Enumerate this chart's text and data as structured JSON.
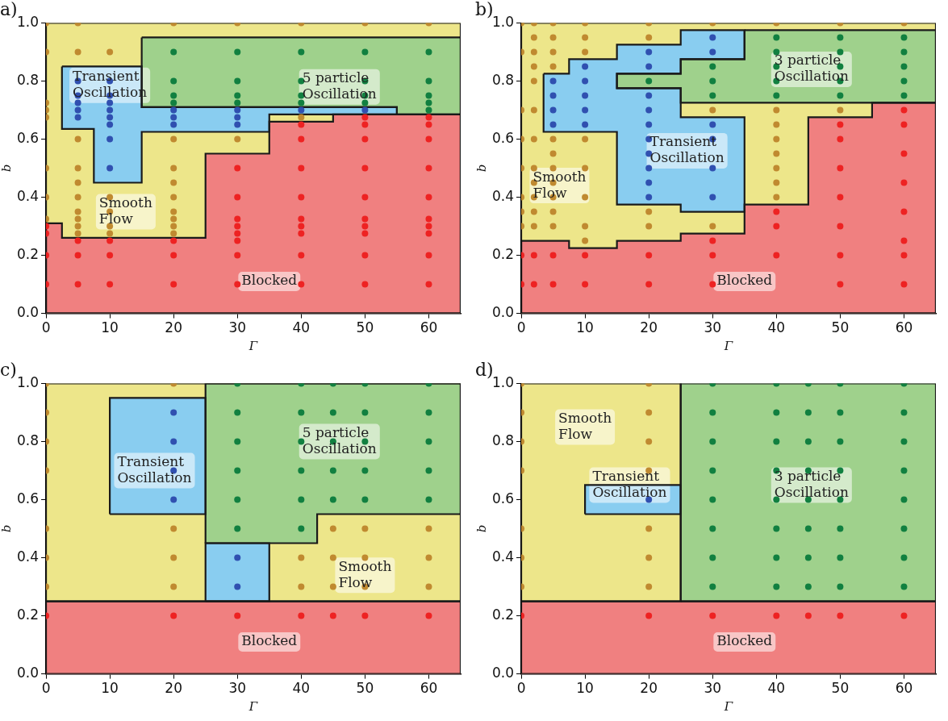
{
  "chart_data": [
    {
      "type": "scatter",
      "title": "a)",
      "xlabel": "Γ",
      "ylabel": "b",
      "xlim": [
        0,
        65
      ],
      "ylim": [
        0,
        1
      ],
      "xticks": [
        0,
        10,
        20,
        30,
        40,
        50,
        60
      ],
      "yticks": [
        {
          "value": 0,
          "label": "0.0"
        },
        {
          "value": 0.2,
          "label": "0.2"
        },
        {
          "value": 0.4,
          "label": "0.4"
        },
        {
          "value": 0.6,
          "label": "0.6"
        },
        {
          "value": 0.8,
          "label": "0.8"
        },
        {
          "value": 1,
          "label": "1.0"
        }
      ],
      "grid": false,
      "legend": false,
      "series": [
        {
          "type": "area",
          "color": "#ede68a",
          "x": [
            0,
            65,
            65,
            0,
            0
          ],
          "values": [
            0,
            0,
            1,
            1,
            0
          ]
        },
        {
          "type": "area",
          "color": "#f08080",
          "x": [
            0,
            0,
            2.5,
            2.5,
            25,
            25,
            35,
            35,
            45,
            45,
            65,
            65,
            0
          ],
          "values": [
            0,
            0.31,
            0.31,
            0.26,
            0.26,
            0.55,
            0.55,
            0.66,
            0.66,
            0.685,
            0.685,
            0,
            0
          ]
        },
        {
          "type": "area",
          "color": "#9fd18c",
          "x": [
            15,
            65,
            65,
            55,
            55,
            15,
            15
          ],
          "values": [
            0.95,
            0.95,
            0.685,
            0.685,
            0.71,
            0.71,
            0.95
          ]
        },
        {
          "type": "area",
          "color": "#89cdf0",
          "x": [
            2.5,
            15,
            15,
            55,
            55,
            35,
            35,
            15,
            15,
            7.5,
            7.5,
            2.5,
            2.5
          ],
          "values": [
            0.85,
            0.85,
            0.71,
            0.71,
            0.685,
            0.685,
            0.625,
            0.625,
            0.45,
            0.45,
            0.635,
            0.635,
            0.85
          ]
        },
        {
          "type": "scatter",
          "color": "#c08a30",
          "x": [
            0,
            0,
            0,
            0,
            0,
            0,
            0,
            0,
            5,
            5,
            5,
            5,
            5,
            5,
            5,
            5,
            5,
            5,
            10,
            10,
            10,
            10,
            10,
            20,
            20,
            20,
            20,
            20,
            20,
            20,
            20,
            20,
            30,
            30,
            40,
            40,
            50,
            60
          ],
          "values": [
            1,
            0.9,
            0.725,
            0.7,
            0.675,
            0.5,
            0.4,
            0.325,
            1,
            0.9,
            0.6,
            0.5,
            0.45,
            0.4,
            0.35,
            0.325,
            0.3,
            0.275,
            0.9,
            0.4,
            0.35,
            0.3,
            0.275,
            1,
            0.6,
            0.5,
            0.45,
            0.4,
            0.35,
            0.325,
            0.3,
            0.275,
            1,
            0.6,
            1,
            0.675,
            1,
            1
          ]
        },
        {
          "type": "scatter",
          "color": "#3050b0",
          "x": [
            5,
            5,
            5,
            5,
            5,
            10,
            10,
            10,
            10,
            10,
            10,
            10,
            10,
            20,
            20,
            20,
            30,
            30,
            30,
            40,
            50
          ],
          "values": [
            0.8,
            0.75,
            0.725,
            0.7,
            0.675,
            0.8,
            0.75,
            0.725,
            0.7,
            0.675,
            0.65,
            0.6,
            0.5,
            0.7,
            0.675,
            0.65,
            0.7,
            0.675,
            0.65,
            0.7,
            0.7
          ]
        },
        {
          "type": "scatter",
          "color": "#118040",
          "x": [
            20,
            20,
            20,
            20,
            30,
            30,
            30,
            30,
            40,
            40,
            40,
            40,
            50,
            50,
            50,
            50,
            60,
            60,
            60,
            60,
            60
          ],
          "values": [
            0.9,
            0.8,
            0.75,
            0.725,
            0.9,
            0.8,
            0.75,
            0.725,
            0.9,
            0.8,
            0.75,
            0.725,
            0.9,
            0.8,
            0.75,
            0.725,
            0.9,
            0.8,
            0.75,
            0.725,
            0.7
          ]
        },
        {
          "type": "scatter",
          "color": "#ee2222",
          "x": [
            0,
            0,
            0,
            0,
            5,
            5,
            5,
            10,
            10,
            10,
            20,
            20,
            20,
            30,
            30,
            30,
            30,
            30,
            30,
            30,
            30,
            40,
            40,
            40,
            40,
            40,
            40,
            40,
            40,
            40,
            50,
            50,
            50,
            50,
            50,
            50,
            50,
            50,
            50,
            50,
            60,
            60,
            60,
            60,
            60,
            60,
            60,
            60,
            60,
            60
          ],
          "values": [
            0.3,
            0.275,
            0.2,
            0.1,
            0.25,
            0.2,
            0.1,
            0.25,
            0.2,
            0.1,
            0.25,
            0.2,
            0.1,
            0.5,
            0.4,
            0.325,
            0.3,
            0.275,
            0.25,
            0.2,
            0.1,
            0.65,
            0.6,
            0.5,
            0.4,
            0.325,
            0.3,
            0.275,
            0.2,
            0.1,
            0.675,
            0.65,
            0.6,
            0.5,
            0.4,
            0.325,
            0.3,
            0.275,
            0.2,
            0.1,
            0.675,
            0.65,
            0.6,
            0.5,
            0.4,
            0.325,
            0.3,
            0.275,
            0.2,
            0.1
          ]
        }
      ],
      "annotations": [
        "Transient Oscillation",
        "5 particle Oscillation",
        "Smooth Flow",
        "Blocked"
      ]
    },
    {
      "type": "scatter",
      "title": "b)",
      "xlabel": "Γ",
      "ylabel": "b",
      "xlim": [
        0,
        65
      ],
      "ylim": [
        0,
        1
      ],
      "xticks": [
        0,
        10,
        20,
        30,
        40,
        50,
        60
      ],
      "yticks": [
        {
          "value": 0,
          "label": "0.0"
        },
        {
          "value": 0.2,
          "label": "0.2"
        },
        {
          "value": 0.4,
          "label": "0.4"
        },
        {
          "value": 0.6,
          "label": "0.6"
        },
        {
          "value": 0.8,
          "label": "0.8"
        },
        {
          "value": 1,
          "label": "1.0"
        }
      ],
      "grid": false,
      "legend": false,
      "series": [
        {
          "type": "area",
          "color": "#ede68a",
          "x": [
            0,
            65,
            65,
            0,
            0
          ],
          "values": [
            0,
            0,
            1,
            1,
            0
          ]
        },
        {
          "type": "area",
          "color": "#f08080",
          "x": [
            0,
            0,
            7.5,
            7.5,
            15,
            15,
            25,
            25,
            35,
            35,
            45,
            45,
            55,
            55,
            65,
            65,
            0
          ],
          "values": [
            0,
            0.25,
            0.25,
            0.225,
            0.225,
            0.25,
            0.25,
            0.275,
            0.275,
            0.375,
            0.375,
            0.675,
            0.675,
            0.725,
            0.725,
            0,
            0
          ]
        },
        {
          "type": "area",
          "color": "#9fd18c",
          "x": [
            35,
            65,
            65,
            25,
            25,
            15,
            15,
            25,
            25,
            35,
            35
          ],
          "values": [
            0.975,
            0.975,
            0.725,
            0.725,
            0.775,
            0.775,
            0.825,
            0.825,
            0.875,
            0.875,
            0.975
          ]
        },
        {
          "type": "area",
          "color": "#89cdf0",
          "x": [
            3.5,
            7.5,
            7.5,
            15,
            15,
            25,
            25,
            35,
            35,
            25,
            25,
            15,
            15,
            25,
            25,
            35,
            35,
            25,
            25,
            15,
            15,
            3.5,
            3.5
          ],
          "values": [
            0.825,
            0.825,
            0.875,
            0.875,
            0.925,
            0.925,
            0.975,
            0.975,
            0.875,
            0.875,
            0.825,
            0.825,
            0.775,
            0.775,
            0.675,
            0.675,
            0.35,
            0.35,
            0.375,
            0.375,
            0.625,
            0.625,
            0.825
          ]
        },
        {
          "type": "scatter",
          "color": "#c08a30",
          "x": [
            0,
            0,
            0,
            0,
            0,
            0,
            0,
            0,
            2,
            2,
            2,
            2,
            2,
            2,
            2,
            2,
            2,
            2,
            2,
            2,
            5,
            5,
            5,
            5,
            5,
            5,
            5,
            5,
            5,
            5,
            5,
            10,
            10,
            10,
            10,
            10,
            10,
            10,
            10,
            20,
            20,
            20,
            20,
            30,
            30,
            30,
            40,
            40,
            40,
            40,
            40,
            40,
            40,
            40,
            50,
            50,
            60
          ],
          "values": [
            1,
            0.9,
            0.7,
            0.6,
            0.5,
            0.4,
            0.35,
            0.3,
            1,
            0.95,
            0.9,
            0.85,
            0.8,
            0.7,
            0.6,
            0.5,
            0.45,
            0.4,
            0.35,
            0.3,
            1,
            0.95,
            0.9,
            0.85,
            0.6,
            0.55,
            0.5,
            0.45,
            0.4,
            0.35,
            0.3,
            1,
            0.95,
            0.9,
            0.6,
            0.5,
            0.4,
            0.3,
            0.25,
            1,
            0.95,
            0.35,
            0.3,
            1,
            0.7,
            0.3,
            1,
            0.7,
            0.65,
            0.6,
            0.55,
            0.5,
            0.45,
            0.4,
            1,
            0.7,
            1
          ]
        },
        {
          "type": "scatter",
          "color": "#3050b0",
          "x": [
            5,
            5,
            5,
            5,
            10,
            10,
            10,
            10,
            10,
            20,
            20,
            20,
            20,
            20,
            20,
            20,
            20,
            20,
            20,
            30,
            30,
            30,
            30,
            30,
            30
          ],
          "values": [
            0.8,
            0.75,
            0.7,
            0.65,
            0.85,
            0.8,
            0.75,
            0.7,
            0.65,
            0.9,
            0.85,
            0.75,
            0.7,
            0.65,
            0.6,
            0.55,
            0.5,
            0.45,
            0.4,
            0.95,
            0.9,
            0.65,
            0.6,
            0.5,
            0.4
          ]
        },
        {
          "type": "scatter",
          "color": "#118040",
          "x": [
            20,
            30,
            30,
            30,
            40,
            40,
            40,
            40,
            40,
            50,
            50,
            50,
            50,
            50,
            60,
            60,
            60,
            60,
            60
          ],
          "values": [
            0.8,
            0.85,
            0.8,
            0.75,
            0.95,
            0.9,
            0.85,
            0.8,
            0.75,
            0.95,
            0.9,
            0.85,
            0.8,
            0.75,
            0.95,
            0.9,
            0.85,
            0.8,
            0.75
          ]
        },
        {
          "type": "scatter",
          "color": "#ee2222",
          "x": [
            0,
            0,
            2,
            2,
            5,
            5,
            10,
            10,
            20,
            20,
            30,
            30,
            30,
            40,
            40,
            40,
            50,
            50,
            50,
            50,
            50,
            50,
            50,
            60,
            60,
            60,
            60,
            60,
            60,
            60,
            60
          ],
          "values": [
            0.2,
            0.1,
            0.2,
            0.1,
            0.2,
            0.1,
            0.2,
            0.1,
            0.2,
            0.1,
            0.25,
            0.2,
            0.1,
            0.35,
            0.3,
            0.2,
            0.65,
            0.6,
            0.5,
            0.4,
            0.3,
            0.2,
            0.1,
            0.7,
            0.65,
            0.55,
            0.45,
            0.35,
            0.25,
            0.2,
            0.1
          ]
        }
      ],
      "annotations": [
        "Transient Oscillation",
        "3 particle Oscillation",
        "Smooth Flow",
        "Blocked"
      ]
    },
    {
      "type": "scatter",
      "title": "c)",
      "xlabel": "Γ",
      "ylabel": "b",
      "xlim": [
        0,
        65
      ],
      "ylim": [
        0,
        1
      ],
      "xticks": [
        0,
        10,
        20,
        30,
        40,
        50,
        60
      ],
      "yticks": [
        {
          "value": 0,
          "label": "0.0"
        },
        {
          "value": 0.2,
          "label": "0.2"
        },
        {
          "value": 0.4,
          "label": "0.4"
        },
        {
          "value": 0.6,
          "label": "0.6"
        },
        {
          "value": 0.8,
          "label": "0.8"
        },
        {
          "value": 1,
          "label": "1.0"
        }
      ],
      "grid": false,
      "legend": false,
      "series": [
        {
          "type": "area",
          "color": "#ede68a",
          "x": [
            0,
            65,
            65,
            0,
            0
          ],
          "values": [
            0.25,
            0.25,
            1,
            1,
            0.25
          ]
        },
        {
          "type": "area",
          "color": "#f08080",
          "x": [
            0,
            65,
            65,
            0,
            0
          ],
          "values": [
            0,
            0,
            0.25,
            0.25,
            0
          ]
        },
        {
          "type": "area",
          "color": "#89cdf0",
          "x": [
            10,
            25,
            25,
            10,
            10,
            null,
            25,
            35,
            35,
            25,
            25
          ],
          "values": [
            0.55,
            0.55,
            0.95,
            0.95,
            0.55,
            null,
            0.25,
            0.25,
            0.45,
            0.45,
            0.25
          ]
        },
        {
          "type": "area",
          "color": "#9fd18c",
          "x": [
            25,
            25,
            65,
            65,
            42.5,
            42.5,
            25
          ],
          "values": [
            0.45,
            1,
            1,
            0.55,
            0.55,
            0.45,
            0.45
          ]
        },
        {
          "type": "scatter",
          "color": "#c08a30",
          "x": [
            0,
            0,
            0,
            0,
            0,
            0,
            0,
            20,
            20,
            20,
            20,
            40,
            40,
            45,
            45,
            45,
            50,
            50,
            50,
            60,
            60,
            60
          ],
          "values": [
            1,
            0.9,
            0.8,
            0.7,
            0.5,
            0.4,
            0.3,
            1,
            0.5,
            0.4,
            0.3,
            0.4,
            0.3,
            0.5,
            0.4,
            0.3,
            0.5,
            0.4,
            0.3,
            0.5,
            0.4,
            0.3
          ]
        },
        {
          "type": "scatter",
          "color": "#3050b0",
          "x": [
            20,
            20,
            20,
            20,
            30,
            30
          ],
          "values": [
            0.9,
            0.8,
            0.7,
            0.6,
            0.4,
            0.3
          ]
        },
        {
          "type": "scatter",
          "color": "#118040",
          "x": [
            30,
            30,
            30,
            30,
            30,
            30,
            40,
            40,
            40,
            40,
            40,
            40,
            45,
            45,
            45,
            45,
            45,
            50,
            50,
            50,
            50,
            50,
            60,
            60,
            60,
            60,
            60
          ],
          "values": [
            1,
            0.9,
            0.8,
            0.7,
            0.6,
            0.5,
            1,
            0.9,
            0.8,
            0.7,
            0.6,
            0.5,
            1,
            0.9,
            0.8,
            0.7,
            0.6,
            1,
            0.9,
            0.8,
            0.7,
            0.6,
            1,
            0.9,
            0.8,
            0.7,
            0.6
          ]
        },
        {
          "type": "scatter",
          "color": "#ee2222",
          "x": [
            0,
            20,
            30,
            40,
            45,
            50,
            60
          ],
          "values": [
            0.2,
            0.2,
            0.2,
            0.2,
            0.2,
            0.2,
            0.2
          ]
        }
      ],
      "annotations": [
        "Transient Oscillation",
        "5 particle Oscillation",
        "Smooth Flow",
        "Blocked"
      ]
    },
    {
      "type": "scatter",
      "title": "d)",
      "xlabel": "Γ",
      "ylabel": "b",
      "xlim": [
        0,
        65
      ],
      "ylim": [
        0,
        1
      ],
      "xticks": [
        0,
        10,
        20,
        30,
        40,
        50,
        60
      ],
      "yticks": [
        {
          "value": 0,
          "label": "0.0"
        },
        {
          "value": 0.2,
          "label": "0.2"
        },
        {
          "value": 0.4,
          "label": "0.4"
        },
        {
          "value": 0.6,
          "label": "0.6"
        },
        {
          "value": 0.8,
          "label": "0.8"
        },
        {
          "value": 1,
          "label": "1.0"
        }
      ],
      "grid": false,
      "legend": false,
      "series": [
        {
          "type": "area",
          "color": "#ede68a",
          "x": [
            0,
            25,
            25,
            0,
            0
          ],
          "values": [
            0.25,
            0.25,
            1,
            1,
            0.25
          ]
        },
        {
          "type": "area",
          "color": "#9fd18c",
          "x": [
            25,
            65,
            65,
            25,
            25
          ],
          "values": [
            0.25,
            0.25,
            1,
            1,
            0.25
          ]
        },
        {
          "type": "area",
          "color": "#f08080",
          "x": [
            0,
            65,
            65,
            0,
            0
          ],
          "values": [
            0,
            0,
            0.25,
            0.25,
            0
          ]
        },
        {
          "type": "area",
          "color": "#89cdf0",
          "x": [
            10,
            25,
            25,
            10,
            10
          ],
          "values": [
            0.55,
            0.55,
            0.65,
            0.65,
            0.55
          ]
        },
        {
          "type": "scatter",
          "color": "#c08a30",
          "x": [
            0,
            0,
            0,
            0,
            0,
            0,
            0,
            20,
            20,
            20,
            20,
            20,
            20,
            20
          ],
          "values": [
            1,
            0.9,
            0.8,
            0.7,
            0.5,
            0.4,
            0.3,
            1,
            0.9,
            0.8,
            0.7,
            0.5,
            0.4,
            0.3
          ]
        },
        {
          "type": "scatter",
          "color": "#3050b0",
          "x": [
            20
          ],
          "values": [
            0.6
          ]
        },
        {
          "type": "scatter",
          "color": "#118040",
          "x": [
            30,
            30,
            30,
            30,
            30,
            30,
            30,
            30,
            40,
            40,
            40,
            40,
            40,
            40,
            40,
            40,
            45,
            45,
            45,
            45,
            45,
            45,
            45,
            45,
            50,
            50,
            50,
            50,
            50,
            50,
            50,
            50,
            60,
            60,
            60,
            60,
            60,
            60,
            60,
            60
          ],
          "values": [
            1,
            0.9,
            0.8,
            0.7,
            0.6,
            0.5,
            0.4,
            0.3,
            1,
            0.9,
            0.8,
            0.7,
            0.6,
            0.5,
            0.4,
            0.3,
            1,
            0.9,
            0.8,
            0.7,
            0.6,
            0.5,
            0.4,
            0.3,
            1,
            0.9,
            0.8,
            0.7,
            0.6,
            0.5,
            0.4,
            0.3,
            1,
            0.9,
            0.8,
            0.7,
            0.6,
            0.5,
            0.4,
            0.3
          ]
        },
        {
          "type": "scatter",
          "color": "#ee2222",
          "x": [
            0,
            20,
            30,
            40,
            45,
            50,
            60
          ],
          "values": [
            0.2,
            0.2,
            0.2,
            0.2,
            0.2,
            0.2,
            0.2
          ]
        }
      ],
      "annotations": [
        "Smooth Flow",
        "Transient Oscillation",
        "3 particle Oscillation",
        "Blocked"
      ]
    }
  ]
}
